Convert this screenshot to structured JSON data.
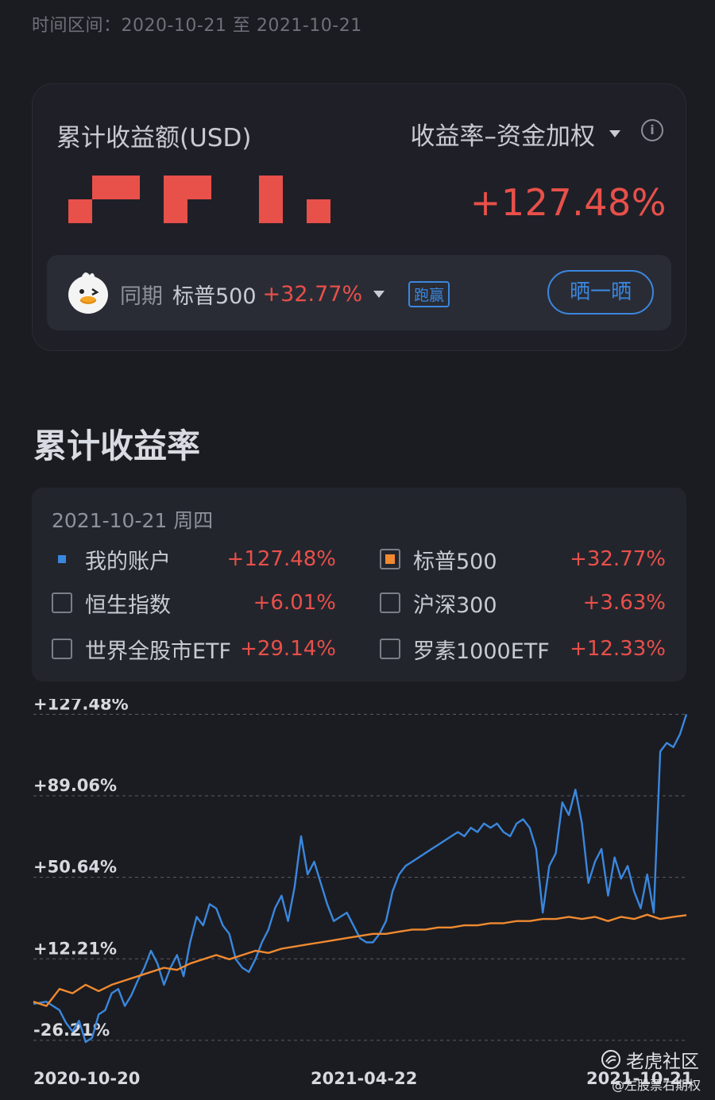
{
  "header": {
    "date_range": "时间区间：2020-10-21 至 2021-10-21"
  },
  "summary": {
    "label": "累计收益额(USD)",
    "mode": "收益率–资金加权",
    "info_icon": "info-circle-icon",
    "return_pct": "+127.48%",
    "compare": {
      "prefix": "同期",
      "index_name": "标普500",
      "index_pct": "+32.77%",
      "badge": "跑赢",
      "share_label": "晒一晒",
      "mascot_icon": "duck-mascot-icon"
    }
  },
  "section": {
    "title": "累计收益率"
  },
  "legend": {
    "date": "2021-10-21 周四",
    "items": [
      {
        "name": "我的账户",
        "value": "+127.48%",
        "checked": true,
        "color": "#3a87de"
      },
      {
        "name": "标普500",
        "value": "+32.77%",
        "checked": true,
        "color": "#f08a30"
      },
      {
        "name": "恒生指数",
        "value": "+6.01%",
        "checked": false
      },
      {
        "name": "沪深300",
        "value": "+3.63%",
        "checked": false
      },
      {
        "name": "世界全股市ETF",
        "value": "+29.14%",
        "checked": false
      },
      {
        "name": "罗素1000ETF",
        "value": "+12.33%",
        "checked": false
      }
    ]
  },
  "chart_data": {
    "type": "line",
    "y_tick_labels": [
      "+127.48%",
      "+89.06%",
      "+50.64%",
      "+12.21%",
      "-26.21%"
    ],
    "y_ticks": [
      127.48,
      89.06,
      50.64,
      12.21,
      -26.21
    ],
    "x_tick_labels": [
      "2020-10-20",
      "2021-04-22",
      "2021-10-21"
    ],
    "ylim": [
      -30,
      128
    ],
    "grid": "dashed horizontal",
    "series": [
      {
        "name": "我的账户",
        "color": "#3a87de",
        "x": [
          0,
          2,
          4,
          5,
          6,
          7,
          8,
          9,
          10,
          11,
          12,
          13,
          14,
          15,
          16,
          17,
          18,
          19,
          20,
          21,
          22,
          23,
          24,
          25,
          26,
          27,
          28,
          29,
          30,
          31,
          32,
          33,
          34,
          35,
          36,
          37,
          38,
          39,
          40,
          41,
          42,
          43,
          44,
          45,
          46,
          47,
          48,
          49,
          50,
          51,
          52,
          53,
          54,
          55,
          56,
          57,
          58,
          59,
          60,
          61,
          62,
          63,
          64,
          65,
          66,
          67,
          68,
          69,
          70,
          71,
          72,
          73,
          74,
          75,
          76,
          77,
          78,
          79,
          80,
          81,
          82,
          83,
          84,
          85,
          86,
          87,
          88,
          89,
          90,
          91,
          92,
          93,
          94,
          95,
          96,
          97,
          98,
          99,
          100
        ],
        "values": [
          -9,
          -8,
          -12,
          -18,
          -22,
          -17,
          -27,
          -25,
          -14,
          -12,
          -4,
          -2,
          -10,
          -5,
          2,
          8,
          16,
          10,
          0,
          8,
          14,
          4,
          20,
          32,
          28,
          38,
          36,
          28,
          24,
          12,
          8,
          6,
          12,
          20,
          26,
          36,
          42,
          30,
          46,
          70,
          52,
          58,
          48,
          38,
          30,
          32,
          34,
          28,
          22,
          20,
          20,
          24,
          30,
          44,
          52,
          56,
          58,
          60,
          62,
          64,
          66,
          68,
          70,
          72,
          70,
          74,
          72,
          76,
          74,
          76,
          72,
          70,
          76,
          78,
          74,
          64,
          34,
          56,
          62,
          86,
          80,
          92,
          76,
          48,
          58,
          64,
          42,
          60,
          50,
          56,
          44,
          36,
          52,
          34,
          110,
          114,
          112,
          118,
          127.48
        ]
      },
      {
        "name": "标普500",
        "color": "#f08a30",
        "x": [
          0,
          2,
          4,
          6,
          8,
          10,
          12,
          14,
          16,
          18,
          20,
          22,
          24,
          26,
          28,
          30,
          32,
          34,
          36,
          38,
          40,
          42,
          44,
          46,
          48,
          50,
          52,
          54,
          56,
          58,
          60,
          62,
          64,
          66,
          68,
          70,
          72,
          74,
          76,
          78,
          80,
          82,
          84,
          86,
          88,
          90,
          92,
          94,
          96,
          98,
          100
        ],
        "values": [
          -8,
          -10,
          -2,
          -4,
          0,
          -3,
          0,
          2,
          4,
          6,
          8,
          7,
          10,
          12,
          14,
          12,
          14,
          16,
          15,
          17,
          18,
          19,
          20,
          21,
          22,
          23,
          24,
          24,
          25,
          26,
          26,
          27,
          27,
          28,
          28,
          29,
          29,
          30,
          30,
          31,
          31,
          32,
          31,
          32,
          30,
          32,
          31,
          33,
          31,
          32,
          32.77
        ]
      }
    ]
  },
  "watermark": {
    "brand": "老虎社区",
    "user": "@左股票右期权",
    "logo_icon": "tiger-logo-icon"
  }
}
